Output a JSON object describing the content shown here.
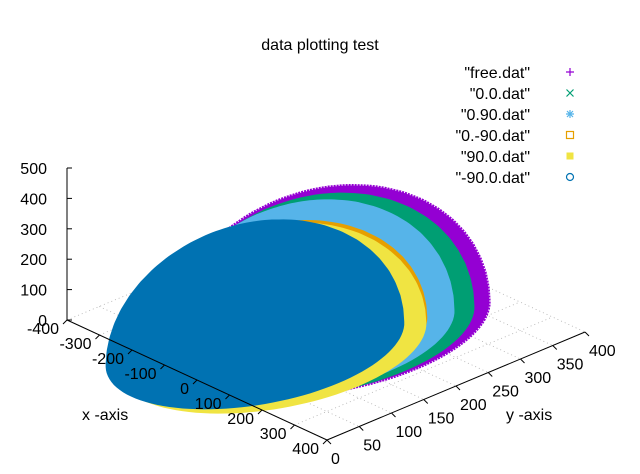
{
  "chart_data": {
    "type": "scatter",
    "title": "data plotting test",
    "xlabel": "x -axis",
    "ylabel": "y -axis",
    "zlabel": "",
    "xlim": [
      -400,
      400
    ],
    "ylim": [
      0,
      400
    ],
    "zlim": [
      0,
      500
    ],
    "x_ticks": [
      "-400",
      "-300",
      "-200",
      "-100",
      "0",
      "100",
      "200",
      "300",
      "400"
    ],
    "y_ticks": [
      "0",
      "50",
      "100",
      "150",
      "200",
      "250",
      "300",
      "350",
      "400"
    ],
    "z_ticks": [
      "0",
      "100",
      "200",
      "300",
      "400",
      "500"
    ],
    "grid": true,
    "legend_position": "top-right",
    "series": [
      {
        "name": "\"free.dat\"",
        "marker": "plus",
        "color": "#9400d3",
        "center": [
          0,
          200
        ],
        "radius": 280,
        "height": 400
      },
      {
        "name": "\"0.0.dat\"",
        "marker": "cross",
        "color": "#009e73",
        "center": [
          0,
          185
        ],
        "radius": 270,
        "height": 390
      },
      {
        "name": "\"0.90.dat\"",
        "marker": "asterisk",
        "color": "#56b4e9",
        "center": [
          -10,
          170
        ],
        "radius": 258,
        "height": 380
      },
      {
        "name": "\"0.-90.dat\"",
        "marker": "square-open",
        "color": "#e69f00",
        "center": [
          -20,
          140
        ],
        "radius": 250,
        "height": 330
      },
      {
        "name": "\"90.0.dat\"",
        "marker": "square-filled",
        "color": "#f0e442",
        "center": [
          -10,
          120
        ],
        "radius": 265,
        "height": 340
      },
      {
        "name": "\"-90.0.dat\"",
        "marker": "circle-open",
        "color": "#0072b2",
        "center": [
          -40,
          110
        ],
        "radius": 255,
        "height": 350
      }
    ]
  }
}
